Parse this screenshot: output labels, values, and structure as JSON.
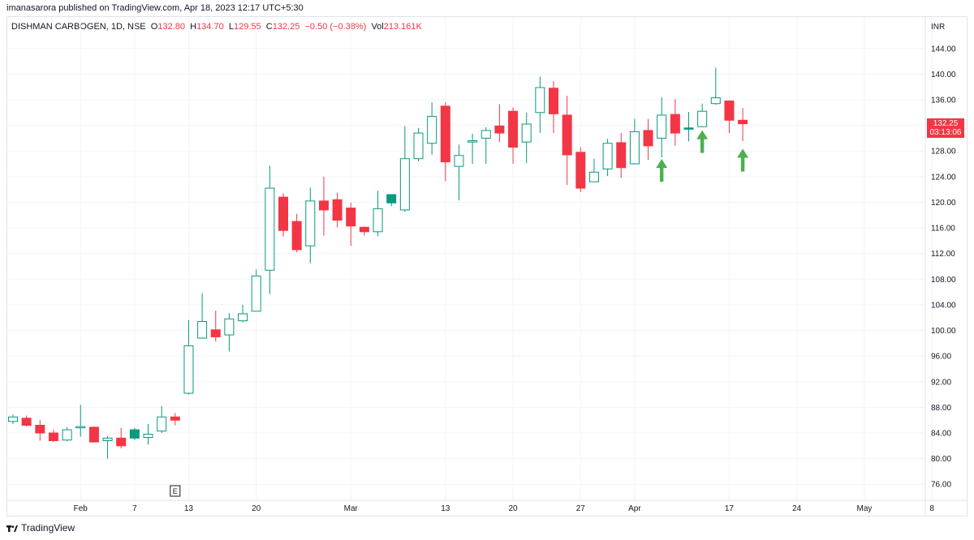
{
  "header": {
    "publisher": "imanasarora published on TradingView.com, Apr 18, 2023 12:17 UTC+5:30"
  },
  "legend": {
    "symbol": "DISHMAN CARBOGEN, 1D, NSE",
    "open_label": "O",
    "open": "132.80",
    "high_label": "H",
    "high": "134.70",
    "low_label": "L",
    "low": "129.55",
    "close_label": "C",
    "close": "132.25",
    "change": "−0.50 (−0.38%)",
    "vol_label": "Vol",
    "vol": "213.161K"
  },
  "price_tag": {
    "price": "132.25",
    "countdown": "03:13:06"
  },
  "footer": {
    "brand": "TradingView"
  },
  "colors": {
    "up": "#089981",
    "down": "#f23645",
    "arrow": "#4caf50",
    "grid": "#f0f3fa",
    "axis_text": "#131722"
  },
  "chart_data": {
    "type": "candlestick",
    "currency": "INR",
    "ylim": [
      73.5,
      146.5
    ],
    "yticks": [
      "144.00",
      "140.00",
      "136.00",
      "132.00",
      "128.00",
      "124.00",
      "120.00",
      "116.00",
      "112.00",
      "108.00",
      "104.00",
      "100.00",
      "96.00",
      "92.00",
      "88.00",
      "84.00",
      "80.00",
      "76.00"
    ],
    "xticks": [
      {
        "label": "Feb",
        "index": 5
      },
      {
        "label": "7",
        "index": 9
      },
      {
        "label": "13",
        "index": 13
      },
      {
        "label": "20",
        "index": 18
      },
      {
        "label": "Mar",
        "index": 25
      },
      {
        "label": "13",
        "index": 32
      },
      {
        "label": "20",
        "index": 37
      },
      {
        "label": "27",
        "index": 42
      },
      {
        "label": "Apr",
        "index": 46
      },
      {
        "label": "17",
        "index": 53
      },
      {
        "label": "24",
        "index": 58
      },
      {
        "label": "May",
        "index": 63
      },
      {
        "label": "8",
        "index": 68
      }
    ],
    "earnings_marker": {
      "label": "E",
      "index": 12
    },
    "candles": [
      {
        "o": 85.8,
        "h": 86.9,
        "l": 85.4,
        "c": 86.5
      },
      {
        "o": 86.3,
        "h": 86.7,
        "l": 85.0,
        "c": 85.2
      },
      {
        "o": 85.2,
        "h": 86.0,
        "l": 82.8,
        "c": 84.0
      },
      {
        "o": 84.0,
        "h": 84.5,
        "l": 82.6,
        "c": 82.8
      },
      {
        "o": 82.9,
        "h": 84.9,
        "l": 82.7,
        "c": 84.5
      },
      {
        "o": 84.8,
        "h": 88.4,
        "l": 83.4,
        "c": 85.0
      },
      {
        "o": 84.9,
        "h": 85.0,
        "l": 82.5,
        "c": 82.6
      },
      {
        "o": 82.8,
        "h": 83.5,
        "l": 80.0,
        "c": 83.2
      },
      {
        "o": 83.2,
        "h": 84.8,
        "l": 81.6,
        "c": 82.0
      },
      {
        "o": 83.2,
        "h": 84.8,
        "l": 82.9,
        "c": 84.5,
        "fill": "up"
      },
      {
        "o": 83.3,
        "h": 85.4,
        "l": 82.2,
        "c": 83.8
      },
      {
        "o": 84.3,
        "h": 88.2,
        "l": 84.0,
        "c": 86.5
      },
      {
        "o": 86.5,
        "h": 87.1,
        "l": 85.2,
        "c": 86.0
      },
      {
        "o": 90.2,
        "h": 101.6,
        "l": 90.0,
        "c": 97.6
      },
      {
        "o": 98.8,
        "h": 105.8,
        "l": 98.7,
        "c": 101.4
      },
      {
        "o": 100.1,
        "h": 103.1,
        "l": 98.3,
        "c": 99.0
      },
      {
        "o": 99.3,
        "h": 102.7,
        "l": 96.7,
        "c": 101.8
      },
      {
        "o": 101.5,
        "h": 104.0,
        "l": 101.3,
        "c": 102.6
      },
      {
        "o": 103.0,
        "h": 109.5,
        "l": 103.0,
        "c": 108.5
      },
      {
        "o": 109.4,
        "h": 125.7,
        "l": 105.7,
        "c": 122.2
      },
      {
        "o": 120.8,
        "h": 121.4,
        "l": 114.6,
        "c": 115.6
      },
      {
        "o": 117.0,
        "h": 118.2,
        "l": 112.2,
        "c": 112.6
      },
      {
        "o": 113.2,
        "h": 122.3,
        "l": 110.5,
        "c": 120.2
      },
      {
        "o": 120.2,
        "h": 124.0,
        "l": 114.8,
        "c": 118.8
      },
      {
        "o": 120.4,
        "h": 121.5,
        "l": 116.1,
        "c": 117.2
      },
      {
        "o": 119.1,
        "h": 119.9,
        "l": 113.2,
        "c": 116.3
      },
      {
        "o": 116.1,
        "h": 116.2,
        "l": 114.8,
        "c": 115.4
      },
      {
        "o": 115.4,
        "h": 121.8,
        "l": 114.7,
        "c": 119.0
      },
      {
        "o": 119.9,
        "h": 121.2,
        "l": 119.4,
        "c": 121.2,
        "fill": "up"
      },
      {
        "o": 118.8,
        "h": 131.9,
        "l": 118.5,
        "c": 126.8
      },
      {
        "o": 126.8,
        "h": 131.6,
        "l": 126.4,
        "c": 130.8
      },
      {
        "o": 129.2,
        "h": 135.6,
        "l": 127.4,
        "c": 133.4
      },
      {
        "o": 135.0,
        "h": 135.6,
        "l": 123.3,
        "c": 126.3
      },
      {
        "o": 125.6,
        "h": 129.0,
        "l": 120.3,
        "c": 127.3
      },
      {
        "o": 129.4,
        "h": 130.7,
        "l": 126.0,
        "c": 129.6
      },
      {
        "o": 130.0,
        "h": 131.7,
        "l": 126.0,
        "c": 131.2
      },
      {
        "o": 131.9,
        "h": 135.3,
        "l": 129.4,
        "c": 130.8
      },
      {
        "o": 134.2,
        "h": 134.8,
        "l": 126.0,
        "c": 128.6
      },
      {
        "o": 129.4,
        "h": 134.0,
        "l": 126.1,
        "c": 132.2
      },
      {
        "o": 134.0,
        "h": 139.6,
        "l": 130.8,
        "c": 137.9
      },
      {
        "o": 137.8,
        "h": 138.9,
        "l": 130.8,
        "c": 133.8
      },
      {
        "o": 133.6,
        "h": 136.6,
        "l": 122.7,
        "c": 127.4
      },
      {
        "o": 127.8,
        "h": 128.6,
        "l": 121.6,
        "c": 122.2
      },
      {
        "o": 123.2,
        "h": 126.8,
        "l": 123.2,
        "c": 124.7
      },
      {
        "o": 125.2,
        "h": 129.9,
        "l": 124.1,
        "c": 129.2
      },
      {
        "o": 129.3,
        "h": 130.8,
        "l": 123.8,
        "c": 125.4
      },
      {
        "o": 126.0,
        "h": 133.0,
        "l": 125.9,
        "c": 131.0
      },
      {
        "o": 131.2,
        "h": 133.0,
        "l": 126.6,
        "c": 128.8
      },
      {
        "o": 130.0,
        "h": 136.4,
        "l": 127.0,
        "c": 133.6
      },
      {
        "o": 133.7,
        "h": 136.1,
        "l": 128.8,
        "c": 130.8
      },
      {
        "o": 131.4,
        "h": 134.1,
        "l": 129.5,
        "c": 131.6,
        "fill": "up"
      },
      {
        "o": 131.8,
        "h": 135.4,
        "l": 131.8,
        "c": 134.2
      },
      {
        "o": 135.4,
        "h": 141.0,
        "l": 135.2,
        "c": 136.3
      },
      {
        "o": 135.8,
        "h": 135.9,
        "l": 130.8,
        "c": 132.8
      },
      {
        "o": 132.8,
        "h": 134.7,
        "l": 129.55,
        "c": 132.25
      }
    ],
    "annotations": [
      {
        "type": "arrow-up",
        "index": 48,
        "price": 123.2
      },
      {
        "type": "arrow-up",
        "index": 51,
        "price": 127.7
      },
      {
        "type": "arrow-up",
        "index": 54,
        "price": 124.8
      }
    ]
  }
}
